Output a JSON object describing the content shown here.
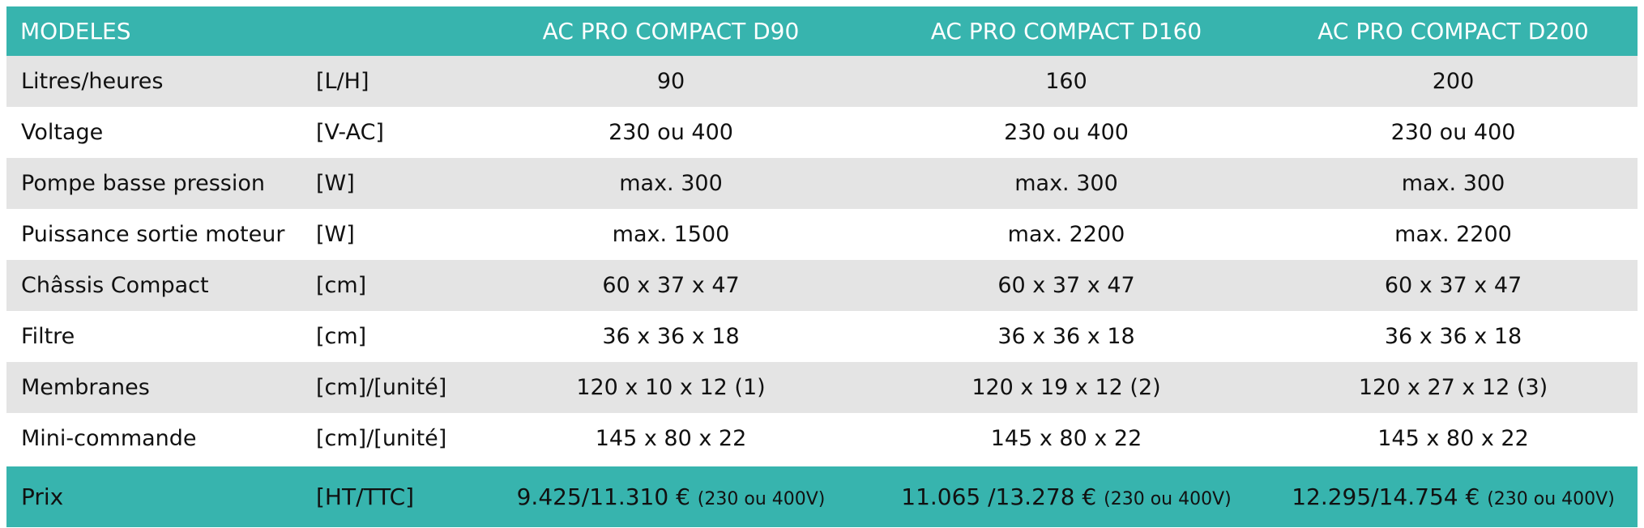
{
  "header": {
    "model_label": "MODELES",
    "unit_label": "",
    "models": [
      "AC PRO COMPACT D90",
      "AC PRO COMPACT D160",
      "AC PRO COMPACT D200"
    ]
  },
  "rows": [
    {
      "label": "Litres/heures",
      "unit": "[L/H]",
      "values": [
        "90",
        "160",
        "200"
      ]
    },
    {
      "label": "Voltage",
      "unit": "[V-AC]",
      "values": [
        "230 ou 400",
        "230 ou 400",
        "230 ou 400"
      ]
    },
    {
      "label": "Pompe basse pression",
      "unit": "[W]",
      "values": [
        "max. 300",
        "max. 300",
        "max. 300"
      ]
    },
    {
      "label": "Puissance sortie moteur",
      "unit": "[W]",
      "values": [
        "max. 1500",
        "max. 2200",
        "max. 2200"
      ]
    },
    {
      "label": "Châssis Compact",
      "unit": "[cm]",
      "values": [
        "60 x 37 x 47",
        "60 x 37 x 47",
        "60 x 37 x 47"
      ]
    },
    {
      "label": "Filtre",
      "unit": "[cm]",
      "values": [
        "36 x 36 x 18",
        "36 x 36 x 18",
        "36 x 36 x 18"
      ]
    },
    {
      "label": "Membranes",
      "unit": "[cm]/[unité]",
      "values": [
        "120 x 10 x 12 (1)",
        "120 x 19 x 12 (2)",
        "120 x 27 x 12 (3)"
      ]
    },
    {
      "label": "Mini-commande",
      "unit": "[cm]/[unité]",
      "values": [
        "145 x 80 x 22",
        "145 x 80 x 22",
        "145 x 80 x 22"
      ]
    }
  ],
  "price": {
    "label": "Prix",
    "unit": "[HT/TTC]",
    "values": [
      {
        "main": "9.425/11.310 €",
        "note": "(230 ou 400V)"
      },
      {
        "main": "11.065 /13.278 €",
        "note": "(230 ou 400V)"
      },
      {
        "main": "12.295/14.754 €",
        "note": "(230 ou 400V)"
      }
    ]
  },
  "colors": {
    "accent": "#37b4ae",
    "stripe": "#e4e4e4"
  }
}
